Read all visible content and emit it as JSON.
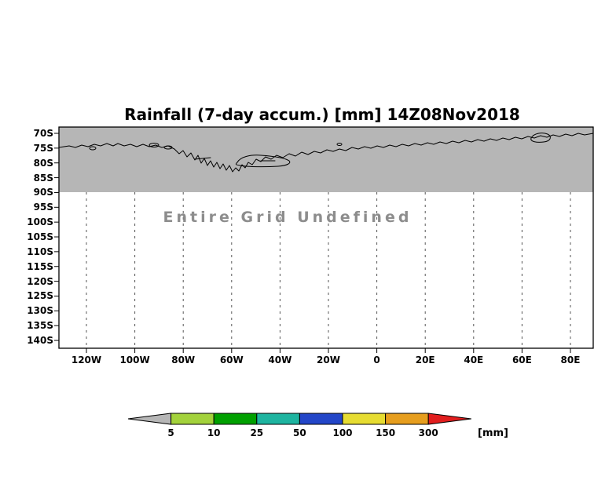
{
  "chart_data": {
    "type": "heatmap",
    "title": "Rainfall (7-day accum.) [mm] 14Z08Nov2018",
    "annotation": "Entire Grid Undefined",
    "values": "entire grid undefined - no rainfall data rendered",
    "x_axis": {
      "label": "",
      "ticks": [
        "120W",
        "100W",
        "80W",
        "60W",
        "40W",
        "20W",
        "0",
        "20E",
        "40E",
        "60E",
        "80E"
      ]
    },
    "y_axis": {
      "label": "",
      "ticks": [
        "70S",
        "75S",
        "80S",
        "85S",
        "90S",
        "95S",
        "100S",
        "105S",
        "110S",
        "115S",
        "120S",
        "125S",
        "130S",
        "135S",
        "140S"
      ]
    },
    "grid": "dashed vertical gridlines below shaded band",
    "shading": {
      "color": "#b6b6b6",
      "region": "band from top of frame to 90S with coastline contours drawn over it"
    },
    "colorbar": {
      "levels": [
        5,
        10,
        25,
        50,
        100,
        150,
        300
      ],
      "segment_colors": [
        "#b6b6b6",
        "#a3d23c",
        "#00a000",
        "#1eb4a0",
        "#2346c8",
        "#e6dc32",
        "#e69e1e",
        "#e11e1e"
      ],
      "units": "[mm]"
    }
  }
}
